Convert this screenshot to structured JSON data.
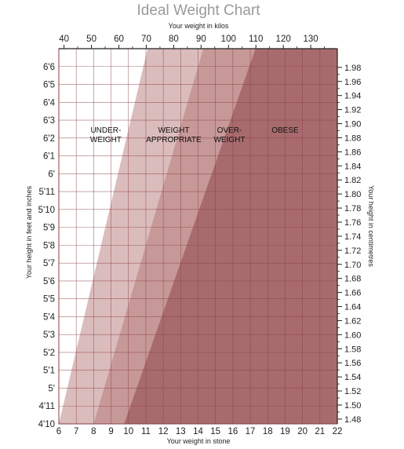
{
  "chart_data": {
    "type": "area",
    "title": "Ideal Weight Chart",
    "top_axis": {
      "label": "Your weight in kilos",
      "ticks": [
        "40",
        "50",
        "60",
        "70",
        "80",
        "90",
        "100",
        "110",
        "120",
        "130"
      ],
      "values": [
        40,
        50,
        60,
        70,
        80,
        90,
        100,
        110,
        120,
        130
      ]
    },
    "bottom_axis": {
      "label": "Your weight in stone",
      "ticks": [
        "6",
        "7",
        "8",
        "9",
        "10",
        "11",
        "12",
        "13",
        "14",
        "15",
        "16",
        "17",
        "18",
        "19",
        "20",
        "21",
        "22"
      ],
      "range": [
        6,
        22
      ]
    },
    "left_axis": {
      "label": "Your height in feet and inches",
      "ticks": [
        "4'10",
        "4'11",
        "5'",
        "5'1",
        "5'2",
        "5'3",
        "5'4",
        "5'5",
        "5'6",
        "5'7",
        "5'8",
        "5'9",
        "5'10",
        "5'11",
        "6'",
        "6'1",
        "6'2",
        "6'3",
        "6'4",
        "6'5",
        "6'6"
      ],
      "range_inches": [
        58,
        79
      ]
    },
    "right_axis": {
      "label": "Your height in centimetres",
      "ticks": [
        "1.48",
        "1.50",
        "1.52",
        "1.54",
        "1.56",
        "1.58",
        "1.60",
        "1.62",
        "1.64",
        "1.66",
        "1.68",
        "1.70",
        "1.72",
        "1.74",
        "1.76",
        "1.78",
        "1.80",
        "1.82",
        "1.84",
        "1.86",
        "1.88",
        "1.90",
        "1.92",
        "1.94",
        "1.96",
        "1.98"
      ],
      "values": [
        1.48,
        1.5,
        1.52,
        1.54,
        1.56,
        1.58,
        1.6,
        1.62,
        1.64,
        1.66,
        1.68,
        1.7,
        1.72,
        1.74,
        1.76,
        1.78,
        1.8,
        1.82,
        1.84,
        1.86,
        1.88,
        1.9,
        1.92,
        1.94,
        1.96,
        1.98
      ]
    },
    "zones": [
      {
        "lines": [
          "UNDER-",
          "WEIGHT"
        ],
        "color": "#ffffff"
      },
      {
        "lines": [
          "WEIGHT",
          "APPROPRIATE"
        ],
        "color": "#dbbcbc",
        "boundary_stone": [
          [
            6.0,
            58
          ],
          [
            11.1,
            79
          ]
        ]
      },
      {
        "lines": [
          "OVER-",
          "WEIGHT"
        ],
        "color": "#c79898",
        "boundary_stone": [
          [
            8.0,
            58
          ],
          [
            14.3,
            79
          ]
        ]
      },
      {
        "lines": [
          "OBESE"
        ],
        "color": "#a86b6d",
        "boundary_stone": [
          [
            9.75,
            58
          ],
          [
            17.3,
            79
          ]
        ]
      }
    ],
    "grid": true,
    "colors": {
      "grid": "#8b3f42",
      "title": "#9a9a9a"
    }
  }
}
